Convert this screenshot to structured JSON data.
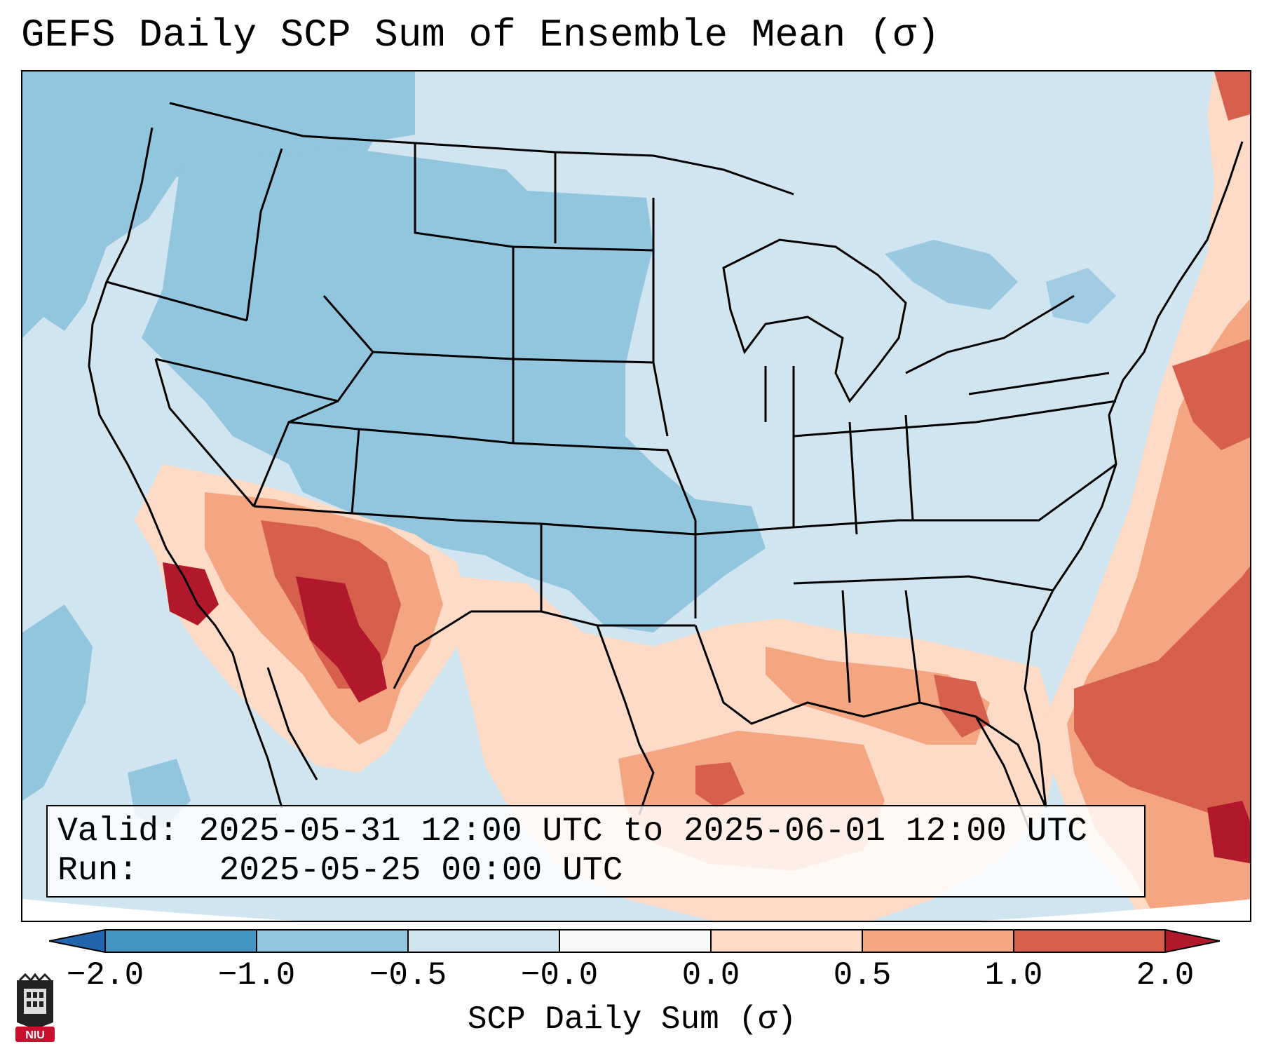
{
  "title": "GEFS Daily SCP Sum of Ensemble Mean (σ)",
  "info": {
    "valid_label": "Valid:",
    "valid_value": "2025-05-31 12:00 UTC to 2025-06-01 12:00 UTC",
    "run_label": "Run:",
    "run_value": "2025-05-25 00:00 UTC"
  },
  "colorbar": {
    "label": "SCP Daily Sum (σ)",
    "ticks": [
      "−2.0",
      "−1.0",
      "−0.5",
      "−0.0",
      "0.0",
      "0.5",
      "1.0",
      "2.0"
    ],
    "colors": {
      "under": "#2166ac",
      "bins": [
        "#4393c3",
        "#92c5de",
        "#d1e5f0",
        "#f7f7f7",
        "#fddbc7",
        "#f4a582",
        "#d6604d"
      ],
      "over": "#b2182b"
    }
  },
  "logo": {
    "text": "NIU",
    "color": "#c8102e"
  }
}
